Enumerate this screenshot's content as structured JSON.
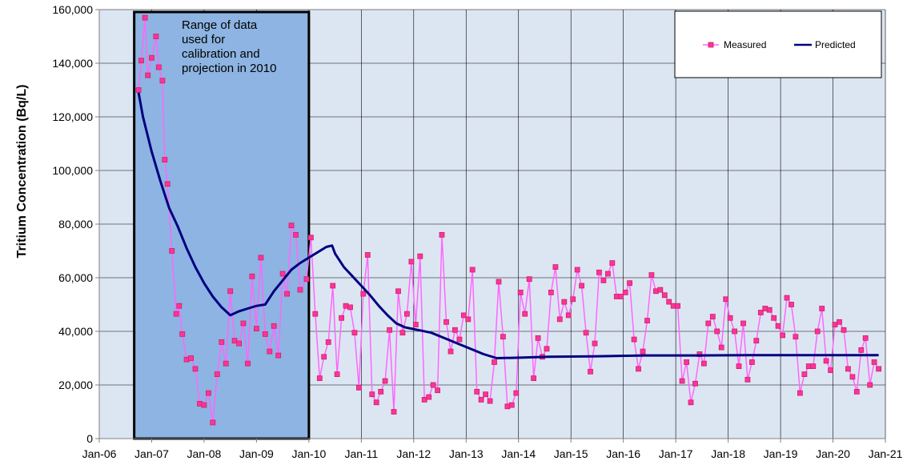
{
  "chart_data": {
    "type": "line",
    "ylabel": "Tritium Concentration (Bq/L)",
    "xlabel": "",
    "ylim": [
      0,
      160000
    ],
    "xlim": [
      "2006-01",
      "2021-01"
    ],
    "x_tick_labels": [
      "Jan-06",
      "Jan-07",
      "Jan-08",
      "Jan-09",
      "Jan-10",
      "Jan-11",
      "Jan-12",
      "Jan-13",
      "Jan-14",
      "Jan-15",
      "Jan-16",
      "Jan-17",
      "Jan-18",
      "Jan-19",
      "Jan-20",
      "Jan-21"
    ],
    "y_tick_labels": [
      "0",
      "20,000",
      "40,000",
      "60,000",
      "80,000",
      "100,000",
      "120,000",
      "140,000",
      "160,000"
    ],
    "y_ticks": [
      0,
      20000,
      40000,
      60000,
      80000,
      100000,
      120000,
      140000,
      160000
    ],
    "grid": true,
    "plot_background": "#dce6f2",
    "legend": {
      "position": "top-right",
      "entries": [
        "Measured",
        "Predicted"
      ]
    },
    "annotation": {
      "lines": [
        "Range of data",
        "used for",
        "calibration and",
        "projection in 2010"
      ],
      "range": [
        "2006-09",
        "2010-01"
      ],
      "fill": "#8db4e2",
      "border": "#000000"
    },
    "series": [
      {
        "name": "Measured",
        "color": "#ff66ff",
        "marker_fill": "#ff3399",
        "points": [
          [
            "2006-10-01",
            130000
          ],
          [
            "2006-10-20",
            141000
          ],
          [
            "2006-11-15",
            157000
          ],
          [
            "2006-12-05",
            135500
          ],
          [
            "2007-01-01",
            142000
          ],
          [
            "2007-02-01",
            150000
          ],
          [
            "2007-02-20",
            138500
          ],
          [
            "2007-03-15",
            133500
          ],
          [
            "2007-04-01",
            104000
          ],
          [
            "2007-04-20",
            95000
          ],
          [
            "2007-05-20",
            70000
          ],
          [
            "2007-06-20",
            46500
          ],
          [
            "2007-07-10",
            49500
          ],
          [
            "2007-08-01",
            39000
          ],
          [
            "2007-09-01",
            29500
          ],
          [
            "2007-10-01",
            30000
          ],
          [
            "2007-11-01",
            26000
          ],
          [
            "2007-12-01",
            13000
          ],
          [
            "2008-01-01",
            12500
          ],
          [
            "2008-02-01",
            17000
          ],
          [
            "2008-03-01",
            6000
          ],
          [
            "2008-04-01",
            24000
          ],
          [
            "2008-05-01",
            36000
          ],
          [
            "2008-06-01",
            28000
          ],
          [
            "2008-07-01",
            55000
          ],
          [
            "2008-08-01",
            36500
          ],
          [
            "2008-09-01",
            35500
          ],
          [
            "2008-10-01",
            43000
          ],
          [
            "2008-11-01",
            28000
          ],
          [
            "2008-12-01",
            60500
          ],
          [
            "2009-01-01",
            41000
          ],
          [
            "2009-02-01",
            67500
          ],
          [
            "2009-03-01",
            39000
          ],
          [
            "2009-04-01",
            32500
          ],
          [
            "2009-05-01",
            42000
          ],
          [
            "2009-06-01",
            31000
          ],
          [
            "2009-07-01",
            61500
          ],
          [
            "2009-08-01",
            54000
          ],
          [
            "2009-09-01",
            79500
          ],
          [
            "2009-10-01",
            76000
          ],
          [
            "2009-11-01",
            55500
          ],
          [
            "2009-12-15",
            59500
          ],
          [
            "2010-01-15",
            75000
          ],
          [
            "2010-02-15",
            46500
          ],
          [
            "2010-03-15",
            22500
          ],
          [
            "2010-04-15",
            30500
          ],
          [
            "2010-05-15",
            36000
          ],
          [
            "2010-06-15",
            57000
          ],
          [
            "2010-07-15",
            24000
          ],
          [
            "2010-08-15",
            45000
          ],
          [
            "2010-09-15",
            49500
          ],
          [
            "2010-10-15",
            49000
          ],
          [
            "2010-11-15",
            39500
          ],
          [
            "2010-12-15",
            19000
          ],
          [
            "2011-01-15",
            54000
          ],
          [
            "2011-02-15",
            68500
          ],
          [
            "2011-03-15",
            16500
          ],
          [
            "2011-04-15",
            13500
          ],
          [
            "2011-05-15",
            17500
          ],
          [
            "2011-06-15",
            21500
          ],
          [
            "2011-07-15",
            40500
          ],
          [
            "2011-08-15",
            10000
          ],
          [
            "2011-09-15",
            55000
          ],
          [
            "2011-10-15",
            39500
          ],
          [
            "2011-11-15",
            46500
          ],
          [
            "2011-12-15",
            66000
          ],
          [
            "2012-01-15",
            42500
          ],
          [
            "2012-02-15",
            68000
          ],
          [
            "2012-03-15",
            14500
          ],
          [
            "2012-04-15",
            15500
          ],
          [
            "2012-05-15",
            20000
          ],
          [
            "2012-06-15",
            18000
          ],
          [
            "2012-07-15",
            76000
          ],
          [
            "2012-08-15",
            43500
          ],
          [
            "2012-09-15",
            32500
          ],
          [
            "2012-10-15",
            40500
          ],
          [
            "2012-11-15",
            37000
          ],
          [
            "2012-12-15",
            46000
          ],
          [
            "2013-01-15",
            44500
          ],
          [
            "2013-02-15",
            63000
          ],
          [
            "2013-03-15",
            17500
          ],
          [
            "2013-04-15",
            14500
          ],
          [
            "2013-05-15",
            16500
          ],
          [
            "2013-06-15",
            14000
          ],
          [
            "2013-07-15",
            28500
          ],
          [
            "2013-08-15",
            58500
          ],
          [
            "2013-09-15",
            38000
          ],
          [
            "2013-10-15",
            12000
          ],
          [
            "2013-11-15",
            12500
          ],
          [
            "2013-12-15",
            17000
          ],
          [
            "2014-01-15",
            54500
          ],
          [
            "2014-02-15",
            46500
          ],
          [
            "2014-03-15",
            59500
          ],
          [
            "2014-04-15",
            22500
          ],
          [
            "2014-05-15",
            37500
          ],
          [
            "2014-06-15",
            30500
          ],
          [
            "2014-07-15",
            33500
          ],
          [
            "2014-08-15",
            54500
          ],
          [
            "2014-09-15",
            64000
          ],
          [
            "2014-10-15",
            44500
          ],
          [
            "2014-11-15",
            51000
          ],
          [
            "2014-12-15",
            46000
          ],
          [
            "2015-01-15",
            52000
          ],
          [
            "2015-02-15",
            63000
          ],
          [
            "2015-03-15",
            57000
          ],
          [
            "2015-04-15",
            39500
          ],
          [
            "2015-05-15",
            25000
          ],
          [
            "2015-06-15",
            35500
          ],
          [
            "2015-07-15",
            62000
          ],
          [
            "2015-08-15",
            59000
          ],
          [
            "2015-09-15",
            61500
          ],
          [
            "2015-10-15",
            65500
          ],
          [
            "2015-11-15",
            53000
          ],
          [
            "2015-12-15",
            53000
          ],
          [
            "2016-01-15",
            54500
          ],
          [
            "2016-02-15",
            58000
          ],
          [
            "2016-03-15",
            37000
          ],
          [
            "2016-04-15",
            26000
          ],
          [
            "2016-05-15",
            32500
          ],
          [
            "2016-06-15",
            44000
          ],
          [
            "2016-07-15",
            61000
          ],
          [
            "2016-08-15",
            55000
          ],
          [
            "2016-09-15",
            55500
          ],
          [
            "2016-10-15",
            53500
          ],
          [
            "2016-11-15",
            51000
          ],
          [
            "2016-12-15",
            49500
          ],
          [
            "2017-01-15",
            49500
          ],
          [
            "2017-02-15",
            21500
          ],
          [
            "2017-03-15",
            28500
          ],
          [
            "2017-04-15",
            13500
          ],
          [
            "2017-05-15",
            20500
          ],
          [
            "2017-06-15",
            31500
          ],
          [
            "2017-07-15",
            28000
          ],
          [
            "2017-08-15",
            43000
          ],
          [
            "2017-09-15",
            45500
          ],
          [
            "2017-10-15",
            40000
          ],
          [
            "2017-11-15",
            34000
          ],
          [
            "2017-12-15",
            52000
          ],
          [
            "2018-01-15",
            45000
          ],
          [
            "2018-02-15",
            40000
          ],
          [
            "2018-03-15",
            27000
          ],
          [
            "2018-04-15",
            43000
          ],
          [
            "2018-05-15",
            22000
          ],
          [
            "2018-06-15",
            28500
          ],
          [
            "2018-07-15",
            36500
          ],
          [
            "2018-08-15",
            47000
          ],
          [
            "2018-09-15",
            48500
          ],
          [
            "2018-10-15",
            48000
          ],
          [
            "2018-11-15",
            45000
          ],
          [
            "2018-12-15",
            42000
          ],
          [
            "2019-01-15",
            38500
          ],
          [
            "2019-02-15",
            52500
          ],
          [
            "2019-03-15",
            50000
          ],
          [
            "2019-04-15",
            38000
          ],
          [
            "2019-05-15",
            17000
          ],
          [
            "2019-06-15",
            24000
          ],
          [
            "2019-07-15",
            27000
          ],
          [
            "2019-08-15",
            27000
          ],
          [
            "2019-09-15",
            40000
          ],
          [
            "2019-10-15",
            48500
          ],
          [
            "2019-11-15",
            29000
          ],
          [
            "2019-12-15",
            25500
          ],
          [
            "2020-01-15",
            42500
          ],
          [
            "2020-02-15",
            43500
          ],
          [
            "2020-03-15",
            40500
          ],
          [
            "2020-04-15",
            26000
          ],
          [
            "2020-05-15",
            23000
          ],
          [
            "2020-06-15",
            17500
          ],
          [
            "2020-07-15",
            33000
          ],
          [
            "2020-08-15",
            37500
          ],
          [
            "2020-09-15",
            20000
          ],
          [
            "2020-10-15",
            28500
          ],
          [
            "2020-11-15",
            26000
          ]
        ]
      },
      {
        "name": "Predicted",
        "color": "#000080",
        "points": [
          [
            "2006-10-01",
            129000
          ],
          [
            "2006-11-01",
            120000
          ],
          [
            "2007-01-01",
            107000
          ],
          [
            "2007-03-01",
            96000
          ],
          [
            "2007-05-01",
            86000
          ],
          [
            "2007-07-01",
            79000
          ],
          [
            "2007-09-01",
            71000
          ],
          [
            "2007-11-01",
            64000
          ],
          [
            "2008-01-01",
            58000
          ],
          [
            "2008-03-01",
            53000
          ],
          [
            "2008-05-01",
            49000
          ],
          [
            "2008-07-01",
            46000
          ],
          [
            "2008-09-01",
            47500
          ],
          [
            "2008-11-01",
            48500
          ],
          [
            "2009-01-01",
            49500
          ],
          [
            "2009-03-01",
            50000
          ],
          [
            "2009-05-01",
            55000
          ],
          [
            "2009-07-01",
            59000
          ],
          [
            "2009-09-01",
            63000
          ],
          [
            "2009-11-01",
            65500
          ],
          [
            "2010-01-01",
            67500
          ],
          [
            "2010-03-01",
            69500
          ],
          [
            "2010-05-01",
            71500
          ],
          [
            "2010-06-10",
            72000
          ],
          [
            "2010-07-01",
            69000
          ],
          [
            "2010-09-01",
            64000
          ],
          [
            "2010-11-01",
            60500
          ],
          [
            "2011-01-01",
            57000
          ],
          [
            "2011-03-01",
            53500
          ],
          [
            "2011-05-01",
            49500
          ],
          [
            "2011-07-01",
            46000
          ],
          [
            "2011-09-01",
            43000
          ],
          [
            "2011-11-01",
            41500
          ],
          [
            "2012-02-01",
            40500
          ],
          [
            "2012-05-01",
            39500
          ],
          [
            "2012-08-01",
            37500
          ],
          [
            "2012-11-01",
            35500
          ],
          [
            "2013-02-01",
            33500
          ],
          [
            "2013-05-01",
            31500
          ],
          [
            "2013-08-01",
            30000
          ],
          [
            "2014-02-01",
            30200
          ],
          [
            "2014-08-01",
            30500
          ],
          [
            "2015-06-01",
            30700
          ],
          [
            "2016-06-01",
            31000
          ],
          [
            "2017-06-01",
            31000
          ],
          [
            "2018-06-01",
            31100
          ],
          [
            "2019-06-01",
            31100
          ],
          [
            "2020-06-01",
            31100
          ],
          [
            "2020-11-15",
            31100
          ]
        ]
      }
    ]
  }
}
